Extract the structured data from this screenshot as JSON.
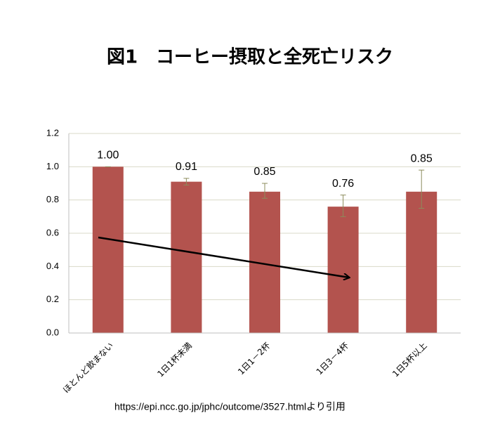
{
  "chart_data": {
    "type": "bar",
    "title": "図1　コーヒー摂取と全死亡リスク",
    "categories": [
      "ほとんど飲まない",
      "1日1杯未満",
      "1日1－2杯",
      "1日3－4杯",
      "1日5杯以上"
    ],
    "values": [
      1.0,
      0.91,
      0.85,
      0.76,
      0.85
    ],
    "value_labels": [
      "1.00",
      "0.91",
      "0.85",
      "0.76",
      "0.85"
    ],
    "ci_low": [
      1.0,
      0.89,
      0.81,
      0.7,
      0.75
    ],
    "ci_high": [
      1.0,
      0.93,
      0.9,
      0.83,
      0.98
    ],
    "color": "#b3534e",
    "ylim": [
      0,
      1.2
    ],
    "yticks": [
      {
        "value": 0,
        "label": "0.0"
      },
      0.2,
      0.4,
      0.6,
      0.8,
      {
        "value": 1,
        "label": "1.0"
      },
      1.2
    ],
    "grid": true,
    "source": "https://epi.ncc.go.jp/jphc/outcome/3527.htmlより引用"
  }
}
